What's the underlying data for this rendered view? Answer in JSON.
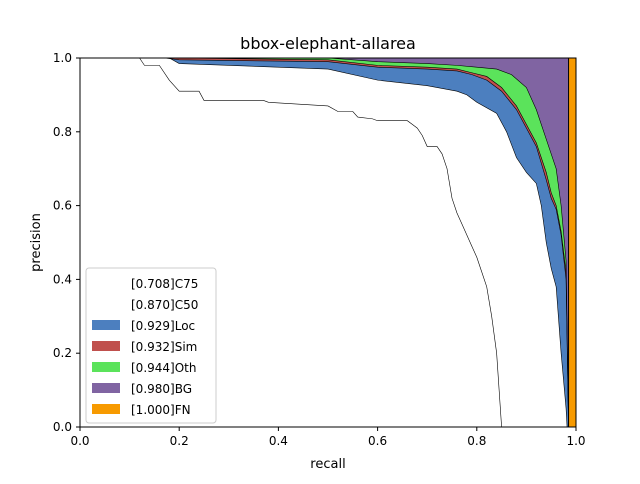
{
  "chart_data": {
    "type": "area",
    "title": "bbox-elephant-allarea",
    "xlabel": "recall",
    "ylabel": "precision",
    "xlim": [
      0,
      1
    ],
    "ylim": [
      0,
      1
    ],
    "xticks": [
      "0.0",
      "0.2",
      "0.4",
      "0.6",
      "0.8",
      "1.0"
    ],
    "yticks": [
      "0.0",
      "0.2",
      "0.4",
      "0.6",
      "0.8",
      "1.0"
    ],
    "grid": false,
    "legend_position": "lower-left",
    "series": [
      {
        "name": "[0.708]C75",
        "color": "#ffffff",
        "points": [
          [
            0,
            1
          ],
          [
            0.12,
            1
          ],
          [
            0.13,
            0.98
          ],
          [
            0.16,
            0.98
          ],
          [
            0.18,
            0.94
          ],
          [
            0.2,
            0.91
          ],
          [
            0.24,
            0.91
          ],
          [
            0.25,
            0.885
          ],
          [
            0.37,
            0.885
          ],
          [
            0.38,
            0.88
          ],
          [
            0.5,
            0.87
          ],
          [
            0.52,
            0.855
          ],
          [
            0.55,
            0.855
          ],
          [
            0.56,
            0.84
          ],
          [
            0.59,
            0.835
          ],
          [
            0.6,
            0.83
          ],
          [
            0.66,
            0.83
          ],
          [
            0.67,
            0.82
          ],
          [
            0.68,
            0.81
          ],
          [
            0.69,
            0.79
          ],
          [
            0.7,
            0.76
          ],
          [
            0.72,
            0.76
          ],
          [
            0.73,
            0.74
          ],
          [
            0.74,
            0.7
          ],
          [
            0.75,
            0.62
          ],
          [
            0.76,
            0.58
          ],
          [
            0.77,
            0.55
          ],
          [
            0.78,
            0.52
          ],
          [
            0.79,
            0.49
          ],
          [
            0.8,
            0.46
          ],
          [
            0.81,
            0.42
          ],
          [
            0.82,
            0.38
          ],
          [
            0.83,
            0.3
          ],
          [
            0.84,
            0.2
          ],
          [
            0.845,
            0.1
          ],
          [
            0.85,
            0.0
          ]
        ]
      },
      {
        "name": "[0.870]C50",
        "color": "#ffffff",
        "points": [
          [
            0,
            1
          ],
          [
            0.18,
            1
          ],
          [
            0.2,
            0.985
          ],
          [
            0.5,
            0.97
          ],
          [
            0.6,
            0.94
          ],
          [
            0.7,
            0.925
          ],
          [
            0.76,
            0.91
          ],
          [
            0.78,
            0.9
          ],
          [
            0.8,
            0.88
          ],
          [
            0.84,
            0.85
          ],
          [
            0.86,
            0.8
          ],
          [
            0.88,
            0.73
          ],
          [
            0.9,
            0.69
          ],
          [
            0.92,
            0.66
          ],
          [
            0.93,
            0.6
          ],
          [
            0.94,
            0.5
          ],
          [
            0.95,
            0.43
          ],
          [
            0.96,
            0.38
          ],
          [
            0.97,
            0.2
          ],
          [
            0.98,
            0.05
          ],
          [
            0.982,
            0.0
          ]
        ]
      },
      {
        "name": "[0.929]Loc",
        "color": "#4c7fbf",
        "points": [
          [
            0,
            1
          ],
          [
            0.17,
            1
          ],
          [
            0.2,
            0.995
          ],
          [
            0.5,
            0.99
          ],
          [
            0.6,
            0.975
          ],
          [
            0.7,
            0.97
          ],
          [
            0.76,
            0.965
          ],
          [
            0.79,
            0.955
          ],
          [
            0.82,
            0.94
          ],
          [
            0.85,
            0.91
          ],
          [
            0.88,
            0.86
          ],
          [
            0.9,
            0.81
          ],
          [
            0.92,
            0.76
          ],
          [
            0.94,
            0.67
          ],
          [
            0.95,
            0.62
          ],
          [
            0.96,
            0.59
          ],
          [
            0.97,
            0.52
          ],
          [
            0.98,
            0.4
          ],
          [
            0.985,
            0.0
          ]
        ]
      },
      {
        "name": "[0.932]Sim",
        "color": "#c0504d",
        "points": [
          [
            0,
            1
          ],
          [
            0.2,
            1
          ],
          [
            0.5,
            0.995
          ],
          [
            0.6,
            0.98
          ],
          [
            0.7,
            0.975
          ],
          [
            0.76,
            0.97
          ],
          [
            0.79,
            0.96
          ],
          [
            0.82,
            0.95
          ],
          [
            0.85,
            0.92
          ],
          [
            0.88,
            0.87
          ],
          [
            0.9,
            0.82
          ],
          [
            0.92,
            0.77
          ],
          [
            0.94,
            0.69
          ],
          [
            0.95,
            0.635
          ],
          [
            0.96,
            0.6
          ],
          [
            0.97,
            0.53
          ],
          [
            0.98,
            0.42
          ],
          [
            0.985,
            0.0
          ]
        ]
      },
      {
        "name": "[0.944]Oth",
        "color": "#5be35b",
        "points": [
          [
            0,
            1
          ],
          [
            0.2,
            1
          ],
          [
            0.5,
            1
          ],
          [
            0.6,
            0.99
          ],
          [
            0.7,
            0.985
          ],
          [
            0.76,
            0.98
          ],
          [
            0.8,
            0.975
          ],
          [
            0.84,
            0.97
          ],
          [
            0.87,
            0.955
          ],
          [
            0.9,
            0.92
          ],
          [
            0.92,
            0.86
          ],
          [
            0.94,
            0.78
          ],
          [
            0.95,
            0.74
          ],
          [
            0.96,
            0.7
          ],
          [
            0.97,
            0.6
          ],
          [
            0.98,
            0.45
          ],
          [
            0.985,
            0.0
          ]
        ]
      },
      {
        "name": "[0.980]BG",
        "color": "#8064a2",
        "points": [
          [
            0,
            1
          ],
          [
            0.985,
            1
          ],
          [
            0.985,
            0.0
          ]
        ]
      },
      {
        "name": "[1.000]FN",
        "color": "#f79a00",
        "points": [
          [
            0,
            1
          ],
          [
            1,
            1
          ],
          [
            1,
            0
          ]
        ]
      }
    ]
  }
}
